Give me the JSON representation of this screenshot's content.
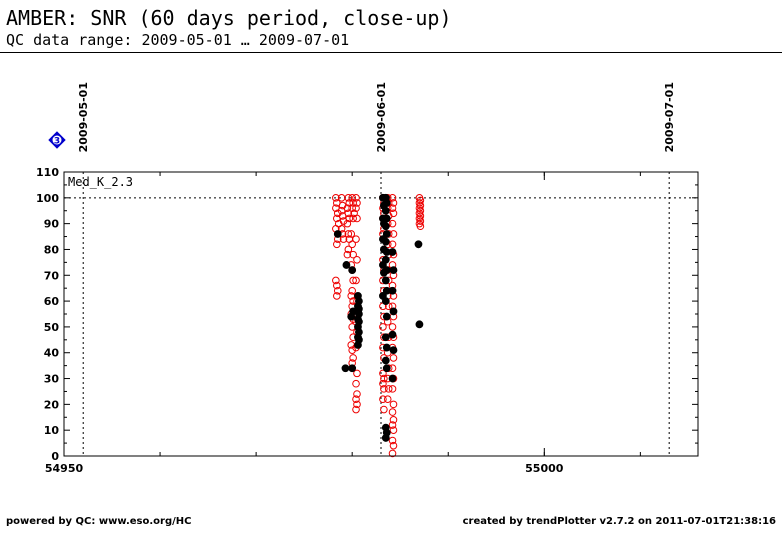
{
  "header": {
    "title": "AMBER: SNR (60 days period, close-up)",
    "subtitle": "QC data range: 2009-05-01 … 2009-07-01"
  },
  "footer": {
    "left": "powered by QC: www.eso.org/HC",
    "right": "created by trendPlotter v2.7.2 on 2011-07-01T21:38:16"
  },
  "marker": {
    "label": "3",
    "color": "#0000cc"
  },
  "chart_data": {
    "type": "scatter",
    "panel_label": "Med_K_2.3",
    "xlim": [
      54950,
      55016
    ],
    "ylim": [
      0,
      110
    ],
    "xticks": [
      54950,
      55000
    ],
    "x_minor_step": 10,
    "yticks": [
      0,
      10,
      20,
      30,
      40,
      50,
      60,
      70,
      80,
      90,
      100,
      110
    ],
    "reference_line_y": 100,
    "date_markers": [
      {
        "mjd": 54952.0,
        "label": "2009-05-01"
      },
      {
        "mjd": 54983.0,
        "label": "2009-06-01"
      },
      {
        "mjd": 55013.0,
        "label": "2009-07-01"
      }
    ],
    "colors": {
      "open": "#ee0000",
      "filled": "#000000"
    },
    "series": [
      {
        "style": "open",
        "points": [
          [
            54978.3,
            100
          ],
          [
            54978.4,
            98
          ],
          [
            54978.3,
            96
          ],
          [
            54978.5,
            94
          ],
          [
            54978.4,
            92
          ],
          [
            54978.6,
            90
          ],
          [
            54978.3,
            88
          ],
          [
            54978.5,
            84
          ],
          [
            54978.4,
            82
          ],
          [
            54978.3,
            68
          ],
          [
            54978.4,
            66
          ],
          [
            54978.5,
            64
          ],
          [
            54978.4,
            62
          ],
          [
            54978.9,
            100
          ],
          [
            54979.0,
            97
          ],
          [
            54978.9,
            95
          ],
          [
            54979.0,
            93
          ],
          [
            54979.1,
            91
          ],
          [
            54978.9,
            88
          ],
          [
            54979.0,
            86
          ],
          [
            54979.1,
            84
          ],
          [
            54979.6,
            100
          ],
          [
            54979.7,
            98
          ],
          [
            54979.5,
            96
          ],
          [
            54979.6,
            94
          ],
          [
            54979.7,
            92
          ],
          [
            54979.5,
            90
          ],
          [
            54979.6,
            86
          ],
          [
            54979.7,
            84
          ],
          [
            54979.6,
            80
          ],
          [
            54979.5,
            78
          ],
          [
            54980.0,
            100
          ],
          [
            54980.1,
            98
          ],
          [
            54980.0,
            96
          ],
          [
            54980.2,
            94
          ],
          [
            54980.1,
            92
          ],
          [
            54979.9,
            86
          ],
          [
            54980.0,
            82
          ],
          [
            54980.1,
            78
          ],
          [
            54979.9,
            74
          ],
          [
            54980.0,
            72
          ],
          [
            54980.1,
            68
          ],
          [
            54980.0,
            64
          ],
          [
            54979.9,
            62
          ],
          [
            54980.1,
            60
          ],
          [
            54980.0,
            58
          ],
          [
            54979.9,
            55
          ],
          [
            54980.1,
            53
          ],
          [
            54980.0,
            50
          ],
          [
            54980.1,
            46
          ],
          [
            54979.9,
            43
          ],
          [
            54980.0,
            41
          ],
          [
            54980.1,
            38
          ],
          [
            54980.0,
            36
          ],
          [
            54980.4,
            100
          ],
          [
            54980.5,
            98
          ],
          [
            54980.4,
            96
          ],
          [
            54980.5,
            92
          ],
          [
            54980.4,
            84
          ],
          [
            54980.5,
            76
          ],
          [
            54980.4,
            68
          ],
          [
            54980.5,
            60
          ],
          [
            54980.4,
            52
          ],
          [
            54980.5,
            48
          ],
          [
            54980.4,
            42
          ],
          [
            54980.5,
            32
          ],
          [
            54980.4,
            28
          ],
          [
            54980.5,
            24
          ],
          [
            54980.4,
            22
          ],
          [
            54980.5,
            20
          ],
          [
            54980.4,
            18
          ],
          [
            54983.2,
            100
          ],
          [
            54983.3,
            98
          ],
          [
            54983.2,
            96
          ],
          [
            54983.3,
            94
          ],
          [
            54983.2,
            92
          ],
          [
            54983.3,
            88
          ],
          [
            54983.2,
            86
          ],
          [
            54983.3,
            84
          ],
          [
            54983.2,
            76
          ],
          [
            54983.3,
            72
          ],
          [
            54983.2,
            68
          ],
          [
            54983.3,
            64
          ],
          [
            54983.2,
            58
          ],
          [
            54983.3,
            54
          ],
          [
            54983.2,
            50
          ],
          [
            54983.3,
            46
          ],
          [
            54983.2,
            42
          ],
          [
            54983.3,
            38
          ],
          [
            54983.2,
            32
          ],
          [
            54983.3,
            30
          ],
          [
            54983.2,
            28
          ],
          [
            54983.3,
            26
          ],
          [
            54983.2,
            22
          ],
          [
            54983.3,
            18
          ],
          [
            54983.7,
            100
          ],
          [
            54983.8,
            98
          ],
          [
            54983.7,
            96
          ],
          [
            54983.8,
            93
          ],
          [
            54983.7,
            90
          ],
          [
            54983.8,
            86
          ],
          [
            54983.7,
            82
          ],
          [
            54983.8,
            78
          ],
          [
            54983.7,
            72
          ],
          [
            54983.8,
            68
          ],
          [
            54983.7,
            62
          ],
          [
            54983.8,
            58
          ],
          [
            54983.7,
            52
          ],
          [
            54983.8,
            46
          ],
          [
            54983.7,
            40
          ],
          [
            54983.8,
            34
          ],
          [
            54983.7,
            30
          ],
          [
            54983.8,
            26
          ],
          [
            54983.7,
            22
          ],
          [
            54984.2,
            100
          ],
          [
            54984.3,
            98
          ],
          [
            54984.2,
            96
          ],
          [
            54984.3,
            94
          ],
          [
            54984.2,
            90
          ],
          [
            54984.3,
            86
          ],
          [
            54984.2,
            82
          ],
          [
            54984.3,
            78
          ],
          [
            54984.2,
            74
          ],
          [
            54984.3,
            70
          ],
          [
            54984.2,
            66
          ],
          [
            54984.3,
            62
          ],
          [
            54984.2,
            58
          ],
          [
            54984.3,
            54
          ],
          [
            54984.2,
            50
          ],
          [
            54984.3,
            46
          ],
          [
            54984.2,
            42
          ],
          [
            54984.3,
            38
          ],
          [
            54984.2,
            34
          ],
          [
            54984.3,
            30
          ],
          [
            54984.2,
            26
          ],
          [
            54984.3,
            20
          ],
          [
            54984.2,
            17
          ],
          [
            54984.3,
            14
          ],
          [
            54984.2,
            12
          ],
          [
            54984.3,
            10
          ],
          [
            54984.2,
            6
          ],
          [
            54984.3,
            4
          ],
          [
            54984.2,
            1
          ],
          [
            54987.0,
            100
          ],
          [
            54987.1,
            99
          ],
          [
            54987.0,
            98
          ],
          [
            54987.1,
            97
          ],
          [
            54987.0,
            96
          ],
          [
            54987.1,
            95
          ],
          [
            54987.0,
            94
          ],
          [
            54987.1,
            93
          ],
          [
            54987.0,
            92
          ],
          [
            54987.1,
            91
          ],
          [
            54987.0,
            90
          ],
          [
            54987.1,
            89
          ]
        ]
      },
      {
        "style": "filled",
        "points": [
          [
            54978.5,
            86
          ],
          [
            54979.4,
            74
          ],
          [
            54979.3,
            34
          ],
          [
            54980.0,
            72
          ],
          [
            54980.1,
            56
          ],
          [
            54979.9,
            54
          ],
          [
            54980.0,
            34
          ],
          [
            54980.6,
            62
          ],
          [
            54980.7,
            60
          ],
          [
            54980.6,
            58
          ],
          [
            54980.7,
            57
          ],
          [
            54980.6,
            56
          ],
          [
            54980.7,
            55
          ],
          [
            54980.6,
            53
          ],
          [
            54980.7,
            52
          ],
          [
            54980.6,
            50
          ],
          [
            54980.7,
            48
          ],
          [
            54980.6,
            46
          ],
          [
            54980.7,
            45
          ],
          [
            54980.6,
            43
          ],
          [
            54983.2,
            100
          ],
          [
            54983.3,
            97
          ],
          [
            54983.2,
            92
          ],
          [
            54983.3,
            90
          ],
          [
            54983.2,
            84
          ],
          [
            54983.3,
            80
          ],
          [
            54983.2,
            74
          ],
          [
            54983.3,
            71
          ],
          [
            54983.2,
            62
          ],
          [
            54983.5,
            100
          ],
          [
            54983.6,
            98
          ],
          [
            54983.5,
            95
          ],
          [
            54983.6,
            92
          ],
          [
            54983.5,
            89
          ],
          [
            54983.6,
            86
          ],
          [
            54983.5,
            83
          ],
          [
            54983.6,
            79
          ],
          [
            54983.5,
            76
          ],
          [
            54983.6,
            72
          ],
          [
            54983.5,
            68
          ],
          [
            54983.6,
            64
          ],
          [
            54983.5,
            60
          ],
          [
            54983.6,
            54
          ],
          [
            54983.5,
            46
          ],
          [
            54983.6,
            42
          ],
          [
            54983.5,
            37
          ],
          [
            54983.6,
            34
          ],
          [
            54983.5,
            11
          ],
          [
            54983.6,
            9
          ],
          [
            54983.5,
            7
          ],
          [
            54984.2,
            79
          ],
          [
            54984.3,
            72
          ],
          [
            54984.2,
            64
          ],
          [
            54984.3,
            56
          ],
          [
            54984.2,
            47
          ],
          [
            54984.3,
            41
          ],
          [
            54984.2,
            30
          ],
          [
            54986.9,
            82
          ],
          [
            54987.0,
            51
          ]
        ]
      }
    ]
  }
}
